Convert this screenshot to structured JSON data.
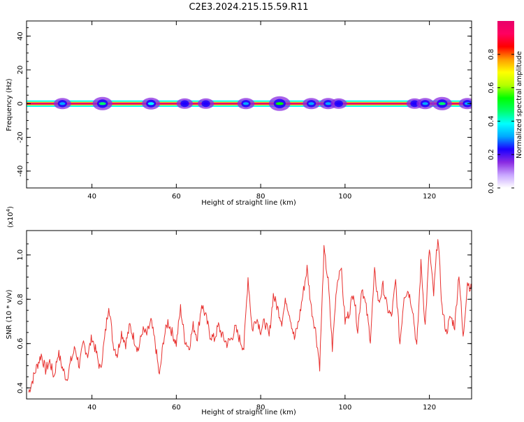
{
  "page": {
    "title": "C2E3.2024.215.15.59.R11"
  },
  "colors": {
    "trace": "#e8302e",
    "axis": "#000000",
    "background": "#ffffff",
    "colormap": [
      "#ffffff",
      "#c9a7ff",
      "#8a2be2",
      "#1c00ff",
      "#00a8ff",
      "#00ffff",
      "#00ff6a",
      "#00ff00",
      "#b5ff00",
      "#ffff00",
      "#ff9c00",
      "#ff0000",
      "#ff0060",
      "#e8006a"
    ]
  },
  "chart_data": [
    {
      "type": "heatmap",
      "title": "C2E3.2024.215.15.59.R11",
      "xlabel": "Height of straight line (km)",
      "ylabel": "Frequency (Hz)",
      "xlim": [
        24.5,
        130
      ],
      "ylim": [
        -50,
        49
      ],
      "x_ticks": [
        40,
        60,
        80,
        100,
        120
      ],
      "y_ticks": [
        -40,
        -20,
        0,
        20,
        40
      ],
      "band": {
        "frequency_center": 0,
        "frequency_halfwidth": 1.5,
        "amplitude": 0.97
      },
      "bursts": [
        {
          "x": 33,
          "amplitude": 0.2
        },
        {
          "x": 42.5,
          "amplitude": 0.35
        },
        {
          "x": 54,
          "amplitude": 0.25
        },
        {
          "x": 62,
          "amplitude": 0.15
        },
        {
          "x": 67,
          "amplitude": 0.15
        },
        {
          "x": 76.5,
          "amplitude": 0.2
        },
        {
          "x": 84.5,
          "amplitude": 0.45
        },
        {
          "x": 92,
          "amplitude": 0.2
        },
        {
          "x": 96,
          "amplitude": 0.2
        },
        {
          "x": 98.5,
          "amplitude": 0.15
        },
        {
          "x": 116.5,
          "amplitude": 0.15
        },
        {
          "x": 119,
          "amplitude": 0.2
        },
        {
          "x": 123,
          "amplitude": 0.35
        },
        {
          "x": 129,
          "amplitude": 0.2
        }
      ],
      "colorbar": {
        "label": "Normalized spectral amplitude",
        "range": [
          0,
          1
        ],
        "ticks": [
          "0.0",
          "0.2",
          "0.4",
          "0.6",
          "0.8"
        ]
      }
    },
    {
      "type": "line",
      "xlabel": "Height of straight line (km)",
      "ylabel": "SNR (10 * v/v)",
      "y_multiplier": "(x10",
      "y_multiplier_exp": "4",
      "y_multiplier_close": ")",
      "xlim": [
        24.5,
        130
      ],
      "ylim": [
        0.35,
        1.11
      ],
      "x_ticks": [
        40,
        60,
        80,
        100,
        120
      ],
      "y_ticks": [
        "0.4",
        "0.6",
        "0.8",
        "1.0"
      ],
      "series": [
        {
          "x": [
            25,
            26,
            27,
            28,
            29,
            30,
            31,
            32,
            33,
            34,
            35,
            36,
            37,
            38,
            39,
            40,
            41,
            42,
            43,
            44,
            45,
            46,
            47,
            48,
            49,
            50,
            51,
            52,
            53,
            54,
            55,
            56,
            57,
            58,
            59,
            60,
            61,
            62,
            63,
            64,
            65,
            66,
            67,
            68,
            69,
            70,
            71,
            72,
            73,
            74,
            75,
            76,
            77,
            78,
            79,
            80,
            81,
            82,
            83,
            84,
            85,
            86,
            87,
            88,
            89,
            90,
            91,
            92,
            93,
            94,
            95,
            96,
            97,
            98,
            99,
            100,
            101,
            102,
            103,
            104,
            105,
            106,
            107,
            108,
            109,
            110,
            111,
            112,
            113,
            114,
            115,
            116,
            117,
            118,
            119,
            120,
            121,
            122,
            123,
            124,
            125,
            126,
            127,
            128,
            129,
            130
          ],
          "values": [
            0.38,
            0.44,
            0.5,
            0.55,
            0.48,
            0.52,
            0.45,
            0.56,
            0.49,
            0.44,
            0.52,
            0.58,
            0.5,
            0.6,
            0.55,
            0.63,
            0.56,
            0.48,
            0.62,
            0.78,
            0.6,
            0.55,
            0.65,
            0.6,
            0.68,
            0.62,
            0.57,
            0.66,
            0.64,
            0.7,
            0.6,
            0.45,
            0.62,
            0.7,
            0.65,
            0.6,
            0.76,
            0.62,
            0.58,
            0.68,
            0.63,
            0.78,
            0.72,
            0.64,
            0.62,
            0.68,
            0.63,
            0.6,
            0.62,
            0.67,
            0.62,
            0.58,
            0.9,
            0.66,
            0.72,
            0.66,
            0.7,
            0.63,
            0.82,
            0.76,
            0.7,
            0.8,
            0.72,
            0.62,
            0.7,
            0.82,
            0.94,
            0.76,
            0.66,
            0.5,
            1.02,
            0.88,
            0.58,
            0.86,
            0.96,
            0.7,
            0.74,
            0.84,
            0.66,
            0.86,
            0.76,
            0.62,
            0.92,
            0.78,
            0.86,
            0.76,
            0.72,
            0.88,
            0.6,
            0.82,
            0.84,
            0.76,
            0.58,
            0.96,
            0.68,
            1.03,
            0.82,
            1.09,
            0.76,
            0.65,
            0.72,
            0.68,
            0.92,
            0.62,
            0.88,
            0.84
          ]
        }
      ]
    }
  ]
}
